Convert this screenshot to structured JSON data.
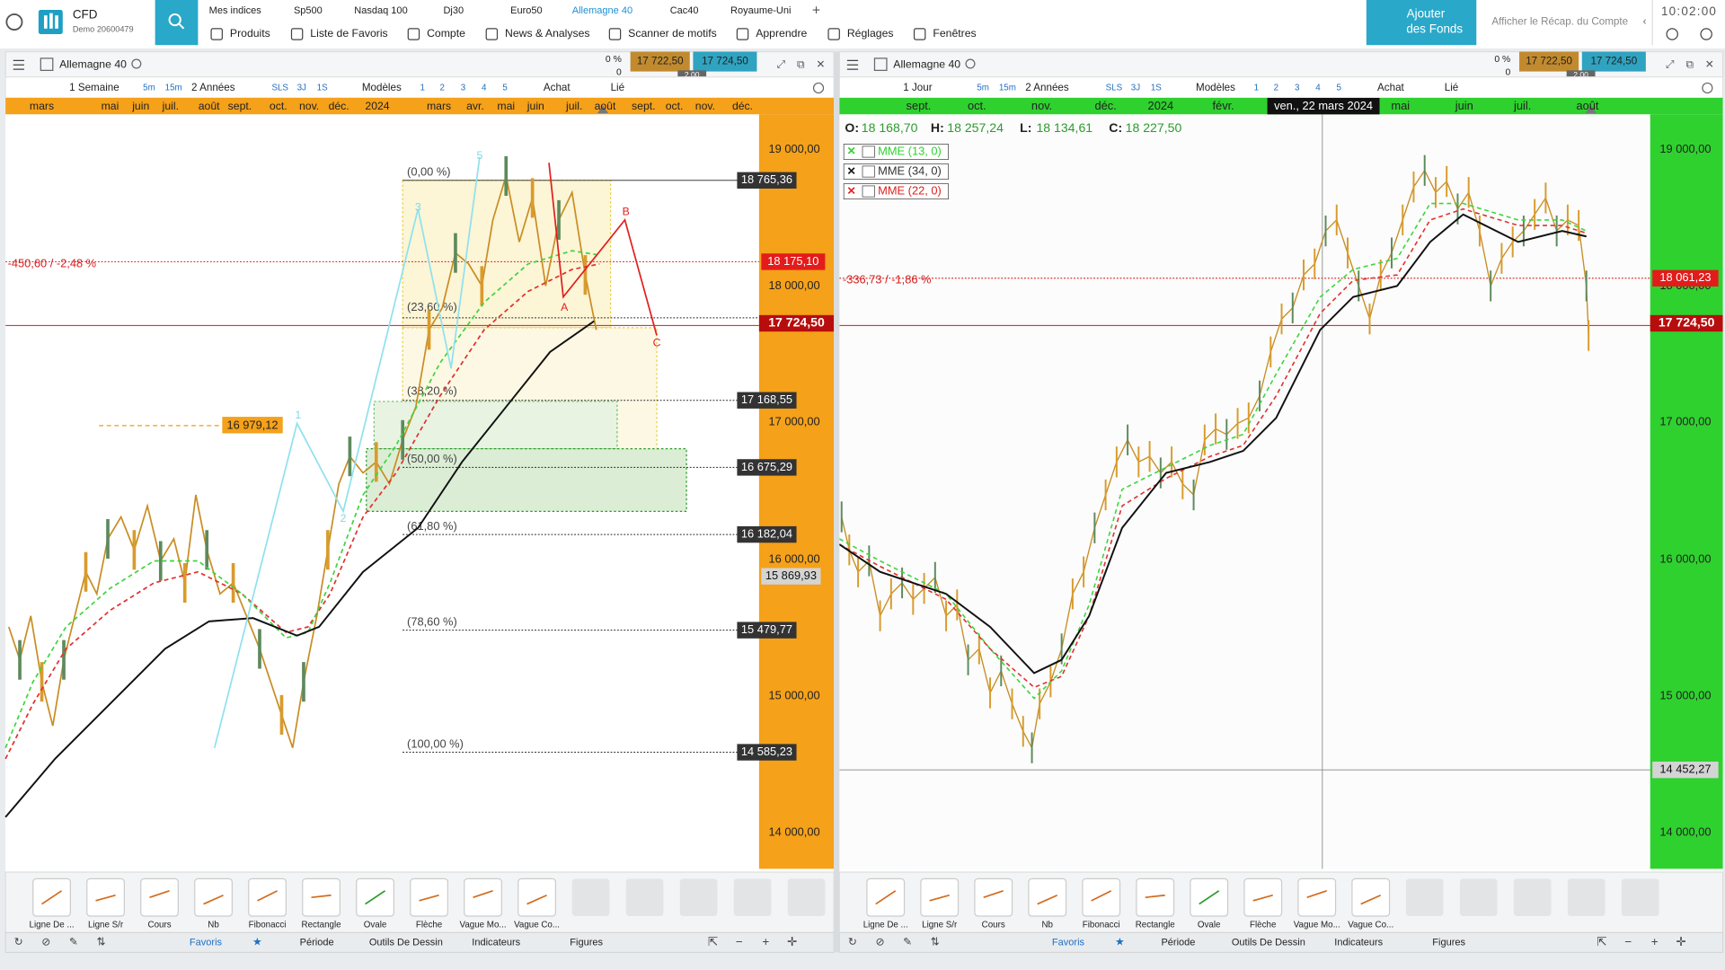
{
  "header": {
    "brand": "CFD",
    "account": "Demo 20600479",
    "nav_top": [
      "Mes indices",
      "Sp500",
      "Nasdaq 100",
      "Dj30",
      "Euro50",
      "Allemagne 40",
      "Cac40",
      "Royaume-Uni"
    ],
    "nav_bottom": [
      "Produits",
      "Liste de Favoris",
      "Compte",
      "News & Analyses",
      "Scanner de motifs",
      "Apprendre",
      "Réglages",
      "Fenêtres"
    ],
    "add_funds": [
      "Ajouter",
      "des Fonds"
    ],
    "summary": "Afficher le Récap. du Compte",
    "time": "10:02:00"
  },
  "panels": [
    {
      "instrument": "Allemagne 40",
      "spread_pct": "0 %",
      "spread_zero": "0",
      "sell": "17 722,50",
      "buy": "17 724,50",
      "spread": "2,00",
      "period": "1 Semaine",
      "intervals": [
        "5m",
        "15m"
      ],
      "range": "2 Années",
      "quick": [
        "SLS",
        "3J",
        "1S"
      ],
      "templates": "Modèles",
      "layouts": [
        "1",
        "2",
        "3",
        "4",
        "5"
      ],
      "buy_label": "Achat",
      "link": "Lié",
      "months": [
        "mars",
        "mai",
        "juin",
        "juil.",
        "août",
        "sept.",
        "oct.",
        "nov.",
        "déc.",
        "2024",
        "mars",
        "avr.",
        "mai",
        "juin",
        "juil.",
        "août",
        "sept.",
        "oct.",
        "nov.",
        "déc."
      ],
      "price_ticks": [
        "19 000,00",
        "18 000,00",
        "17 000,00",
        "16 000,00",
        "15 000,00",
        "14 000,00"
      ],
      "price_marks": [
        "18 765,36",
        "18 175,10",
        "17 724,50",
        "17 168,55",
        "16 675,29",
        "16 182,04",
        "15 869,93",
        "15 479,77",
        "14 585,23"
      ],
      "change": "-450,60 / -2,48 %",
      "fibonacci": [
        "(0,00 %)",
        "(23,60 %)",
        "(38,20 %)",
        "(50,00 %)",
        "(61,80 %)",
        "(78,60 %)",
        "(100,00 %)"
      ],
      "level": "16 979,12",
      "waves": [
        "1",
        "2",
        "3",
        "5",
        "A",
        "B",
        "C"
      ]
    },
    {
      "instrument": "Allemagne 40",
      "spread_pct": "0 %",
      "spread_zero": "0",
      "sell": "17 722,50",
      "buy": "17 724,50",
      "spread": "2,00",
      "period": "1 Jour",
      "intervals": [
        "5m",
        "15m"
      ],
      "range": "2 Années",
      "quick": [
        "SLS",
        "3J",
        "1S"
      ],
      "templates": "Modèles",
      "layouts": [
        "1",
        "2",
        "3",
        "4",
        "5"
      ],
      "buy_label": "Achat",
      "link": "Lié",
      "months": [
        "sept.",
        "oct.",
        "nov.",
        "déc.",
        "2024",
        "févr.",
        "ven., 22 mars 2024",
        "mai",
        "juin",
        "juil.",
        "août"
      ],
      "ohlc": [
        {
          "label": "O:",
          "value": "18 168,70"
        },
        {
          "label": "H:",
          "value": "18 257,24"
        },
        {
          "label": "L:",
          "value": "18 134,61"
        },
        {
          "label": "C:",
          "value": "18 227,50"
        }
      ],
      "indicators": [
        "MME (13, 0)",
        "MME (34, 0)",
        "MME (22, 0)"
      ],
      "price_ticks": [
        "19 000,00",
        "18 000,00",
        "17 000,00",
        "16 000,00",
        "15 000,00",
        "14 000,00"
      ],
      "price_marks": [
        "18 061,23",
        "17 724,50",
        "14 452,27"
      ],
      "change": "-336,73 / -1,86 %"
    }
  ],
  "tools": [
    "Ligne De ...",
    "Ligne S/r",
    "Cours",
    "Nb",
    "Fibonacci",
    "Rectangle",
    "Ovale",
    "Flèche",
    "Vague Mo...",
    "Vague Co..."
  ],
  "tabs": [
    "Favoris",
    "Période",
    "Outils De Dessin",
    "Indicateurs",
    "Figures"
  ]
}
